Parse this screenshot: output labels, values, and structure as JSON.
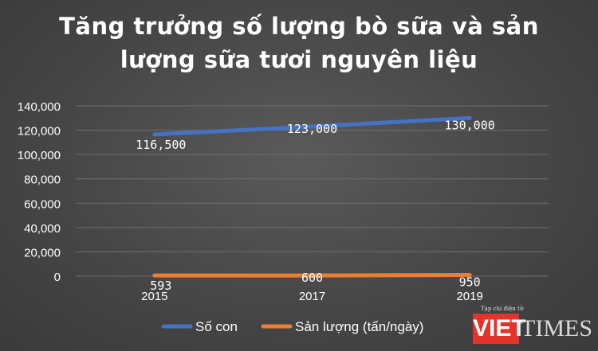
{
  "chart_data": {
    "type": "line",
    "title_lines": [
      "Tăng trưởng số lượng bò sữa và sản",
      "lượng sữa tươi nguyên liệu"
    ],
    "categories": [
      "2015",
      "2017",
      "2019"
    ],
    "ylim": [
      0,
      140000
    ],
    "yticks": [
      "0",
      "20,000",
      "40,000",
      "60,000",
      "80,000",
      "100,000",
      "120,000",
      "140,000"
    ],
    "grid": true,
    "legend_position": "bottom",
    "series": [
      {
        "name": "Số con",
        "values": [
          116500,
          123000,
          130000
        ],
        "labels": [
          "116,500",
          "123,000",
          "130,000"
        ],
        "color": "#4472c4"
      },
      {
        "name": "Sản lượng (tấn/ngày)",
        "values": [
          593,
          600,
          950
        ],
        "labels": [
          "593",
          "600",
          "950"
        ],
        "color": "#ed7d31"
      }
    ]
  },
  "watermark": {
    "small_text": "Tạp chí điện tử",
    "brand_left": "VIET",
    "brand_right": "TIMES"
  }
}
